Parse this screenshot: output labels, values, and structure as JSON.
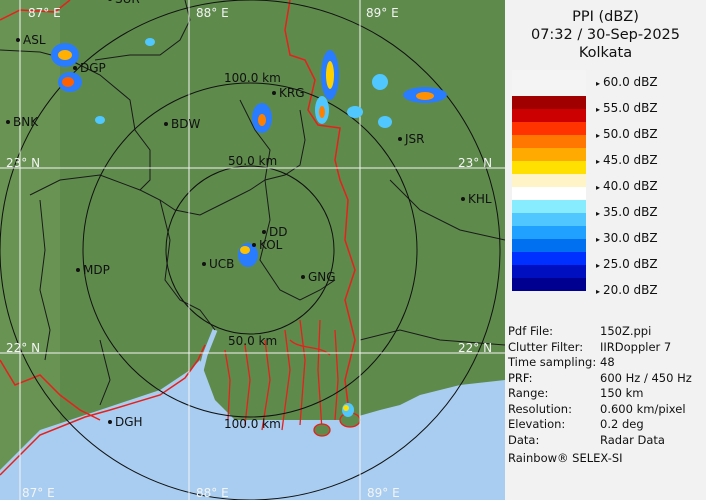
{
  "map": {
    "grid_labels": {
      "lon_87_top": "87° E",
      "lon_88_top": "88° E",
      "lon_89_top": "89° E",
      "lon_87_bottom": "87° E",
      "lon_88_bottom": "88° E",
      "lon_89_bottom": "89° E",
      "lat_23_left": "23° N",
      "lat_23_right": "23° N",
      "lat_22_left": "22° N",
      "lat_22_right": "22° N"
    },
    "range_labels": {
      "north_50": "50.0 km",
      "north_100": "100.0 km",
      "south_50": "50.0 km",
      "south_100": "100.0 km"
    },
    "cities": [
      "SUR",
      "ASL",
      "DGP",
      "BNK",
      "BDW",
      "KRG",
      "JSR",
      "KHL",
      "DD",
      "KOL",
      "UCB",
      "GNG",
      "MDP",
      "DGH"
    ],
    "colors": {
      "land": "#5e8a4c",
      "sea": "#a8cdf0",
      "border": "#e8201c",
      "district": "#1a1a1a"
    }
  },
  "panel": {
    "title": "PPI (dBZ)",
    "timestamp": "07:32 / 30-Sep-2025",
    "station": "Kolkata",
    "legend": [
      {
        "label": "60.0 dBZ"
      },
      {
        "label": "55.0 dBZ"
      },
      {
        "label": "50.0 dBZ"
      },
      {
        "label": "45.0 dBZ"
      },
      {
        "label": "40.0 dBZ"
      },
      {
        "label": "35.0 dBZ"
      },
      {
        "label": "30.0 dBZ"
      },
      {
        "label": "25.0 dBZ"
      },
      {
        "label": "20.0 dBZ"
      }
    ],
    "legend_colors": [
      "#f4f4f4",
      "#f4f4f4",
      "#a00000",
      "#cc0000",
      "#ff3300",
      "#ff7700",
      "#ffaa00",
      "#ffe000",
      "#fff4c8",
      "#ffffff",
      "#88ecff",
      "#50c8ff",
      "#20a0ff",
      "#0070f0",
      "#0030ff",
      "#0010c0",
      "#000090"
    ],
    "info": [
      {
        "key": "Pdf File:",
        "value": "150Z.ppi"
      },
      {
        "key": "Clutter Filter:",
        "value": "IIRDoppler 7"
      },
      {
        "key": "Time sampling:",
        "value": "48"
      },
      {
        "key": "PRF:",
        "value": "600 Hz / 450 Hz"
      },
      {
        "key": "Range:",
        "value": "150 km"
      },
      {
        "key": "Resolution:",
        "value": "0.600 km/pixel"
      },
      {
        "key": "Elevation:",
        "value": "0.2 deg"
      },
      {
        "key": "Data:",
        "value": "Radar Data"
      }
    ],
    "brand": "Rainbow® SELEX-SI"
  }
}
